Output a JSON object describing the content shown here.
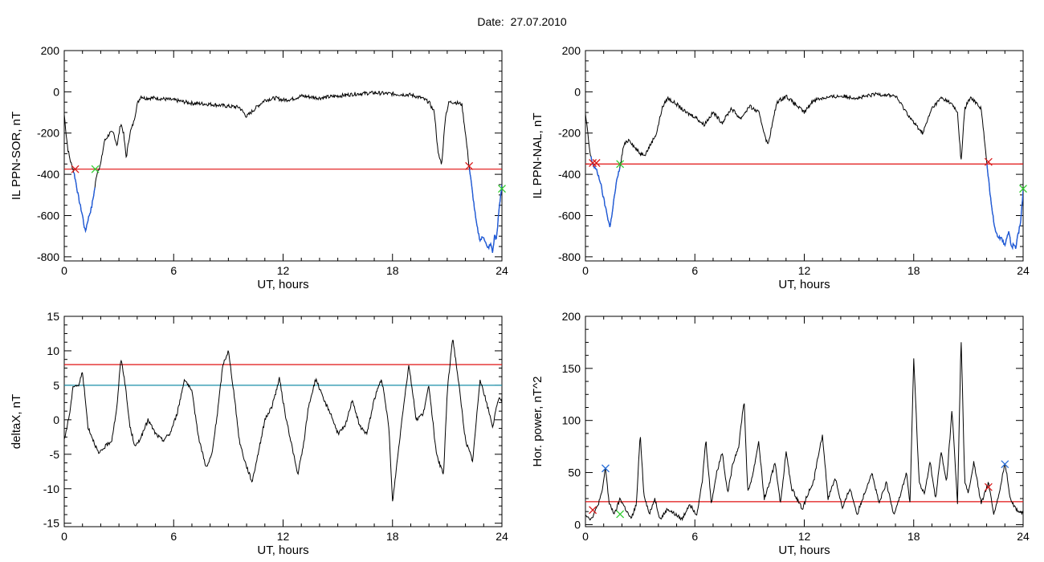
{
  "figure": {
    "date_label": "Date:",
    "date_value": "27.07.2010"
  },
  "colors": {
    "trace": "#000000",
    "threshold": "#e01010",
    "threshold2": "#1a8fa8",
    "highlight": "#1f5ad8",
    "marker_red": "#d81c1c",
    "marker_green": "#2ecc2e",
    "marker_blue": "#2a6fd8"
  },
  "chart_data": [
    {
      "type": "line",
      "panel": "top-left",
      "xlabel": "UT, hours",
      "ylabel": "IL PPN-SOR, nT",
      "xlim": [
        0,
        24
      ],
      "ylim": [
        -820,
        200
      ],
      "xticks": [
        0,
        6,
        12,
        18,
        24
      ],
      "yticks": [
        -800,
        -600,
        -400,
        -200,
        0,
        200
      ],
      "threshold": -375,
      "series": [
        {
          "x": [
            0,
            0.1,
            0.2,
            0.35,
            0.5,
            0.6,
            0.8,
            1.0,
            1.15,
            1.3,
            1.5,
            1.65,
            1.8,
            2.0,
            2.2,
            2.5,
            2.7,
            2.9,
            3.1,
            3.25,
            3.4,
            3.6,
            3.8,
            4.0,
            4.2,
            4.4,
            5,
            6,
            7,
            8,
            9,
            9.6,
            10,
            10.6,
            11,
            11.6,
            12,
            12.5,
            13,
            14,
            15,
            16,
            17,
            18,
            19,
            19.6,
            20,
            20.3,
            20.5,
            20.7,
            20.9,
            21.1,
            21.4,
            21.8,
            22.0,
            22.2,
            22.4,
            22.6,
            22.8,
            23.0,
            23.2,
            23.4,
            23.5,
            23.6,
            23.7,
            23.85,
            24
          ],
          "y": [
            -110,
            -200,
            -280,
            -340,
            -380,
            -420,
            -520,
            -600,
            -680,
            -620,
            -560,
            -480,
            -390,
            -350,
            -240,
            -200,
            -200,
            -260,
            -150,
            -200,
            -320,
            -200,
            -150,
            -60,
            -20,
            -30,
            -30,
            -40,
            -55,
            -60,
            -70,
            -75,
            -120,
            -70,
            -40,
            -30,
            -40,
            -35,
            -20,
            -30,
            -20,
            -10,
            -5,
            -10,
            -15,
            -30,
            -50,
            -100,
            -300,
            -350,
            -120,
            -50,
            -50,
            -60,
            -200,
            -360,
            -500,
            -640,
            -720,
            -700,
            -760,
            -740,
            -780,
            -690,
            -720,
            -560,
            -450
          ]
        }
      ],
      "highlight_range": [
        0.5,
        1.7
      ],
      "highlight_range_2": [
        22.2,
        24
      ],
      "markers": [
        {
          "x": 0.6,
          "y": -375,
          "color": "red"
        },
        {
          "x": 1.7,
          "y": -375,
          "color": "green"
        },
        {
          "x": 22.2,
          "y": -360,
          "color": "red"
        },
        {
          "x": 24.0,
          "y": -470,
          "color": "green"
        }
      ]
    },
    {
      "type": "line",
      "panel": "top-right",
      "xlabel": "UT, hours",
      "ylabel": "IL PPN-NAL, nT",
      "xlim": [
        0,
        24
      ],
      "ylim": [
        -820,
        200
      ],
      "xticks": [
        0,
        6,
        12,
        18,
        24
      ],
      "yticks": [
        -800,
        -600,
        -400,
        -200,
        0,
        200
      ],
      "threshold": -350,
      "series": [
        {
          "x": [
            0,
            0.1,
            0.25,
            0.4,
            0.6,
            0.8,
            1.0,
            1.2,
            1.35,
            1.5,
            1.7,
            1.9,
            2.1,
            2.4,
            2.7,
            3.0,
            3.3,
            3.6,
            3.9,
            4.2,
            4.5,
            5,
            5.5,
            6,
            6.5,
            7,
            7.5,
            8,
            8.5,
            9,
            9.5,
            10,
            10.5,
            11,
            11.5,
            12,
            12.5,
            13,
            14,
            15,
            16,
            17,
            18,
            18.5,
            19,
            19.5,
            20,
            20.4,
            20.6,
            20.8,
            21.1,
            21.4,
            21.7,
            22.0,
            22.2,
            22.4,
            22.6,
            22.8,
            23.0,
            23.2,
            23.4,
            23.5,
            23.6,
            23.7,
            23.85,
            24
          ],
          "y": [
            -110,
            -180,
            -300,
            -350,
            -380,
            -430,
            -520,
            -600,
            -660,
            -560,
            -440,
            -360,
            -260,
            -230,
            -270,
            -300,
            -300,
            -250,
            -200,
            -80,
            -30,
            -60,
            -100,
            -120,
            -160,
            -100,
            -150,
            -80,
            -130,
            -70,
            -100,
            -260,
            -50,
            -20,
            -60,
            -100,
            -40,
            -30,
            -20,
            -30,
            -10,
            -20,
            -150,
            -200,
            -80,
            -30,
            -50,
            -100,
            -340,
            -80,
            -30,
            -50,
            -80,
            -340,
            -500,
            -640,
            -700,
            -710,
            -740,
            -680,
            -760,
            -730,
            -770,
            -700,
            -640,
            -480
          ]
        }
      ],
      "highlight_range": [
        0.3,
        1.9
      ],
      "highlight_range_2": [
        22.0,
        24
      ],
      "markers": [
        {
          "x": 0.4,
          "y": -345,
          "color": "red"
        },
        {
          "x": 0.6,
          "y": -345,
          "color": "red"
        },
        {
          "x": 1.9,
          "y": -350,
          "color": "green"
        },
        {
          "x": 22.1,
          "y": -340,
          "color": "red"
        },
        {
          "x": 24.0,
          "y": -470,
          "color": "green"
        }
      ]
    },
    {
      "type": "line",
      "panel": "bottom-left",
      "xlabel": "UT, hours",
      "ylabel": "deltaX, nT",
      "xlim": [
        0,
        24
      ],
      "ylim": [
        -15.5,
        15
      ],
      "xticks": [
        0,
        6,
        12,
        18,
        24
      ],
      "yticks": [
        -15,
        -10,
        -5,
        0,
        5,
        10,
        15
      ],
      "threshold": 8,
      "threshold2": 5,
      "series": [
        {
          "x": [
            0,
            0.3,
            0.5,
            0.8,
            1.0,
            1.3,
            1.6,
            1.9,
            2.2,
            2.6,
            2.9,
            3.1,
            3.3,
            3.6,
            3.9,
            4.3,
            4.6,
            5.0,
            5.4,
            5.8,
            6.2,
            6.6,
            7.0,
            7.4,
            7.8,
            8.1,
            8.4,
            8.7,
            9.0,
            9.3,
            9.6,
            9.9,
            10.3,
            10.7,
            11.0,
            11.4,
            11.8,
            12.1,
            12.5,
            12.8,
            13.1,
            13.4,
            13.8,
            14.2,
            14.6,
            15.0,
            15.4,
            15.8,
            16.2,
            16.6,
            17.0,
            17.4,
            17.8,
            18.0,
            18.3,
            18.6,
            18.9,
            19.3,
            19.7,
            20.0,
            20.4,
            20.8,
            21.0,
            21.3,
            21.6,
            22.0,
            22.4,
            22.8,
            23.2,
            23.5,
            23.8,
            24
          ],
          "y": [
            -3,
            1,
            5,
            5,
            7,
            -1,
            -3,
            -5,
            -4,
            -3,
            2,
            9,
            6,
            -1,
            -4,
            -2,
            0,
            -2,
            -3,
            -2,
            1,
            6,
            4,
            -3,
            -7,
            -5,
            1,
            8,
            10,
            4,
            -3,
            -6,
            -9,
            -4,
            0,
            2,
            6,
            1,
            -4,
            -8,
            -4,
            2,
            6,
            3,
            1,
            -2,
            -1,
            3,
            -1,
            -2,
            3,
            6,
            -1,
            -12,
            -5,
            2,
            8,
            0,
            1,
            5,
            -5,
            -8,
            4,
            12,
            6,
            -3,
            -6,
            6,
            2,
            -1,
            3,
            3
          ]
        }
      ],
      "markers": []
    },
    {
      "type": "line",
      "panel": "bottom-right",
      "xlabel": "UT, hours",
      "ylabel": "Hor. power, nT^2",
      "xlim": [
        0,
        24
      ],
      "ylim": [
        -2,
        200
      ],
      "xticks": [
        0,
        6,
        12,
        18,
        24
      ],
      "yticks": [
        0,
        50,
        100,
        150,
        200
      ],
      "threshold": 22,
      "series": [
        {
          "x": [
            0,
            0.3,
            0.6,
            0.9,
            1.1,
            1.3,
            1.6,
            1.9,
            2.2,
            2.5,
            2.8,
            3.0,
            3.2,
            3.5,
            3.8,
            4.1,
            4.5,
            4.9,
            5.3,
            5.7,
            6.1,
            6.4,
            6.6,
            6.9,
            7.2,
            7.5,
            7.8,
            8.1,
            8.4,
            8.7,
            8.9,
            9.2,
            9.5,
            9.8,
            10.1,
            10.4,
            10.7,
            11.0,
            11.3,
            11.6,
            11.9,
            12.2,
            12.5,
            12.8,
            13.0,
            13.3,
            13.7,
            14.1,
            14.5,
            14.9,
            15.3,
            15.7,
            16.1,
            16.5,
            16.9,
            17.3,
            17.6,
            17.8,
            18.0,
            18.3,
            18.6,
            18.9,
            19.2,
            19.5,
            19.8,
            20.1,
            20.4,
            20.6,
            20.8,
            21.0,
            21.3,
            21.7,
            22.1,
            22.4,
            22.7,
            23.0,
            23.3,
            23.6,
            24
          ],
          "y": [
            10,
            5,
            15,
            30,
            55,
            20,
            10,
            25,
            15,
            5,
            20,
            88,
            30,
            10,
            25,
            5,
            15,
            10,
            5,
            20,
            10,
            40,
            82,
            20,
            50,
            70,
            30,
            60,
            75,
            120,
            30,
            50,
            80,
            25,
            40,
            60,
            20,
            70,
            35,
            25,
            15,
            30,
            40,
            70,
            85,
            25,
            45,
            15,
            35,
            10,
            30,
            50,
            20,
            40,
            10,
            30,
            50,
            20,
            160,
            40,
            30,
            60,
            25,
            70,
            40,
            110,
            20,
            180,
            40,
            30,
            60,
            20,
            40,
            10,
            30,
            60,
            25,
            15,
            10
          ]
        }
      ],
      "markers": [
        {
          "x": 0.4,
          "y": 14,
          "color": "red"
        },
        {
          "x": 1.1,
          "y": 54,
          "color": "blue"
        },
        {
          "x": 1.9,
          "y": 10,
          "color": "green"
        },
        {
          "x": 22.1,
          "y": 36,
          "color": "red"
        },
        {
          "x": 23.0,
          "y": 58,
          "color": "blue"
        }
      ]
    }
  ]
}
